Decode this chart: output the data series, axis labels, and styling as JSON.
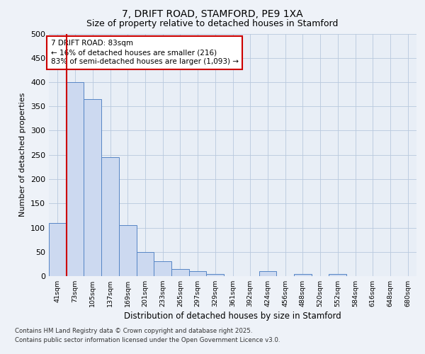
{
  "title1": "7, DRIFT ROAD, STAMFORD, PE9 1XA",
  "title2": "Size of property relative to detached houses in Stamford",
  "xlabel": "Distribution of detached houses by size in Stamford",
  "ylabel": "Number of detached properties",
  "categories": [
    "41sqm",
    "73sqm",
    "105sqm",
    "137sqm",
    "169sqm",
    "201sqm",
    "233sqm",
    "265sqm",
    "297sqm",
    "329sqm",
    "361sqm",
    "392sqm",
    "424sqm",
    "456sqm",
    "488sqm",
    "520sqm",
    "552sqm",
    "584sqm",
    "616sqm",
    "648sqm",
    "680sqm"
  ],
  "values": [
    110,
    400,
    365,
    245,
    105,
    50,
    30,
    15,
    10,
    5,
    0,
    0,
    10,
    0,
    5,
    0,
    5,
    0,
    0,
    0,
    0
  ],
  "bar_color": "#ccd9f0",
  "bar_edge_color": "#5585c5",
  "vline_color": "#cc0000",
  "annotation_text": "7 DRIFT ROAD: 83sqm\n← 16% of detached houses are smaller (216)\n83% of semi-detached houses are larger (1,093) →",
  "annotation_box_color": "#ffffff",
  "annotation_box_edge_color": "#cc0000",
  "ylim": [
    0,
    500
  ],
  "yticks": [
    0,
    50,
    100,
    150,
    200,
    250,
    300,
    350,
    400,
    450,
    500
  ],
  "footer1": "Contains HM Land Registry data © Crown copyright and database right 2025.",
  "footer2": "Contains public sector information licensed under the Open Government Licence v3.0.",
  "bg_color": "#eef2f8",
  "plot_bg_color": "#e8eef6"
}
